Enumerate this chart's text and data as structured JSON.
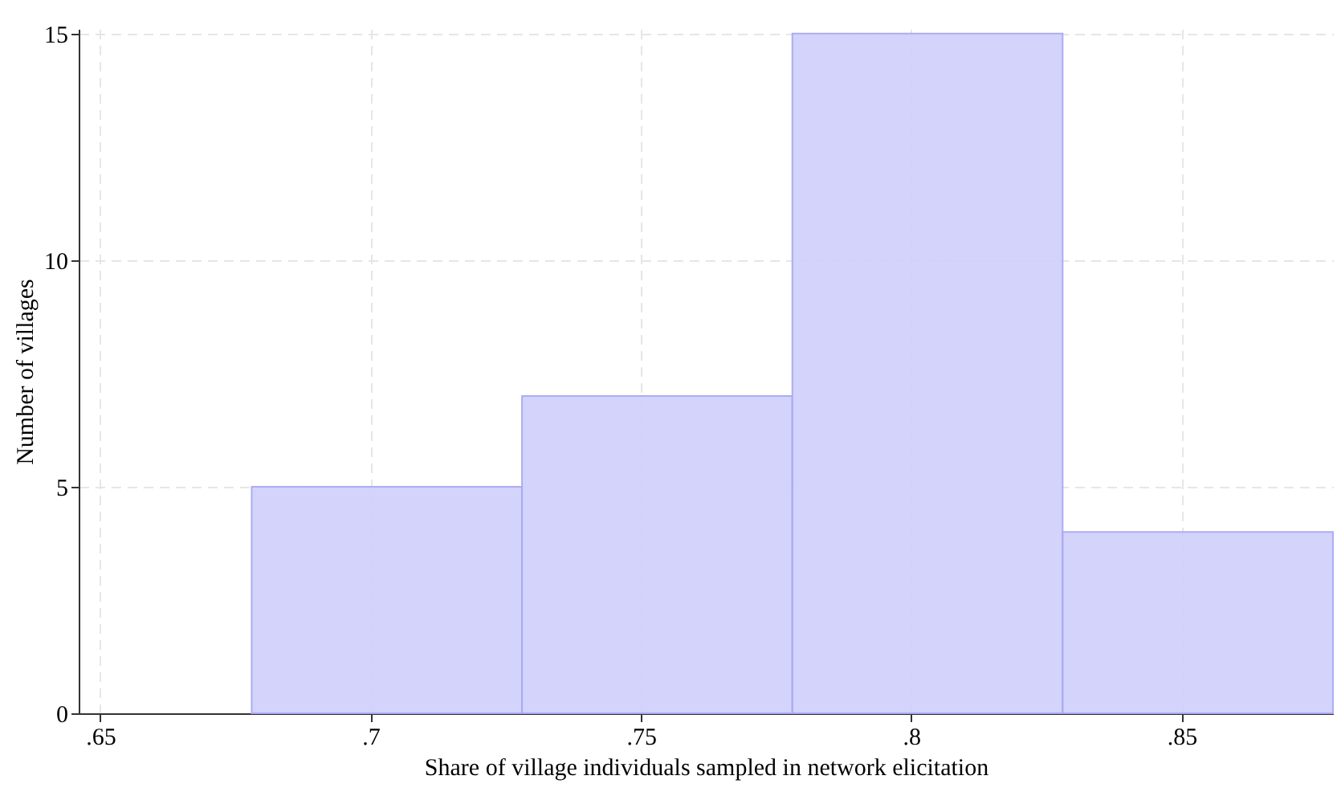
{
  "chart_data": {
    "type": "histogram",
    "xlabel": "Share of village individuals sampled in network elicitation",
    "ylabel": "Number of villages",
    "bins": [
      0.678,
      0.728,
      0.778,
      0.828,
      0.878
    ],
    "values": [
      5,
      7,
      15,
      4
    ],
    "color": "#d1d1fb",
    "xlim": [
      0.646,
      0.878
    ],
    "xticks": [
      {
        "value": 0.65,
        "label": ".65"
      },
      {
        "value": 0.7,
        "label": ".7"
      },
      {
        "value": 0.75,
        "label": ".75"
      },
      {
        "value": 0.8,
        "label": ".8"
      },
      {
        "value": 0.85,
        "label": ".85"
      }
    ],
    "ylim": [
      0,
      15.1
    ],
    "yticks": [
      0,
      5,
      10,
      15
    ],
    "grid": true
  }
}
